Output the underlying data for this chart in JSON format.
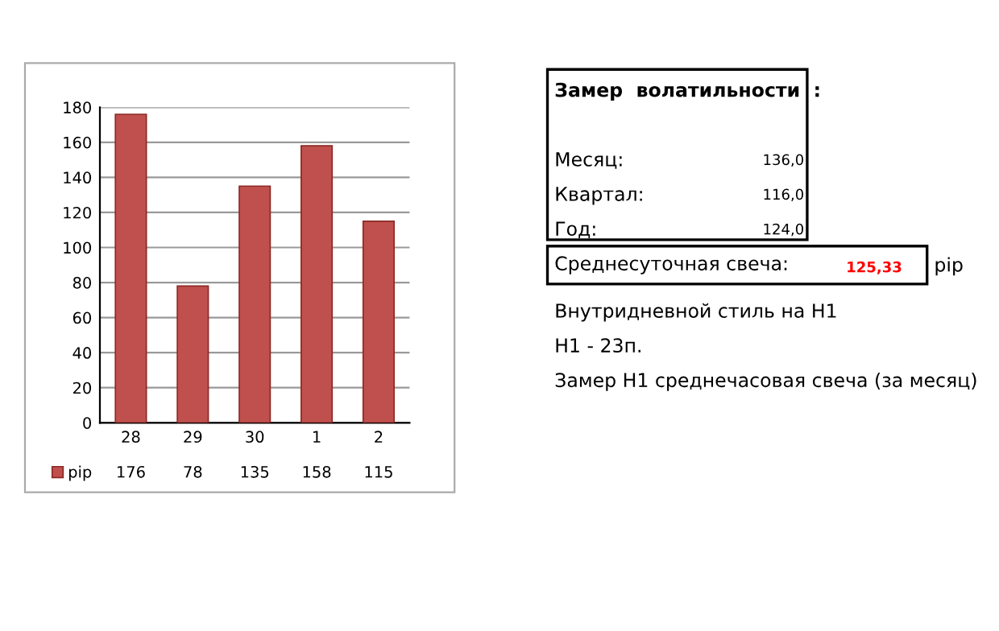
{
  "chart_data": {
    "type": "bar",
    "categories": [
      "28",
      "29",
      "30",
      "1",
      "2"
    ],
    "series": [
      {
        "name": "pip",
        "color": "#c0504d",
        "values": [
          176,
          78,
          135,
          158,
          115
        ]
      }
    ],
    "ylim": [
      0,
      180
    ],
    "yticks": [
      0,
      20,
      40,
      60,
      80,
      100,
      120,
      140,
      160,
      180
    ],
    "grid": "y",
    "legend": "bottom",
    "data_labels": true,
    "annotations": [
      "Замер  волатильности  :",
      "Месяц:",
      "136,0",
      "Квартал:",
      "116,0",
      "Год:",
      "124,0",
      "Среднесуточная свеча:",
      "125,33",
      "pip",
      "Внутридневной стиль на H1",
      "H1 - 23п.",
      "Замер H1 среднечасовая свеча (за месяц)"
    ]
  }
}
